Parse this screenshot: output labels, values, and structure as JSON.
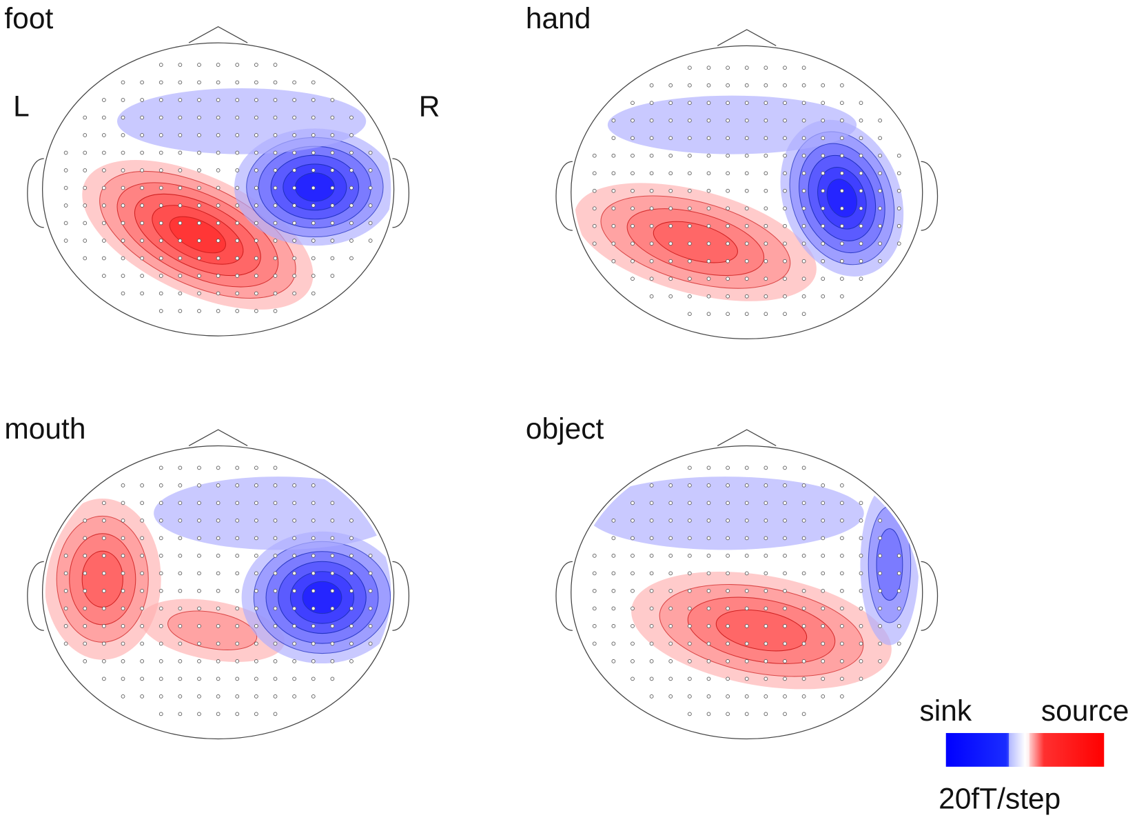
{
  "panels": [
    {
      "label": "foot"
    },
    {
      "label": "hand"
    },
    {
      "label": "mouth"
    },
    {
      "label": "object"
    }
  ],
  "orientation": {
    "left": "L",
    "right": "R"
  },
  "legend": {
    "low": "sink",
    "high": "source",
    "scale": "20fT/step"
  }
}
